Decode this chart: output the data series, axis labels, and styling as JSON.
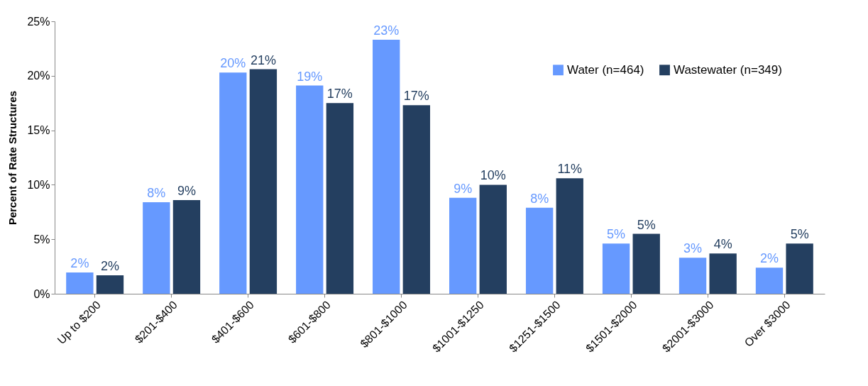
{
  "chart_data": {
    "type": "bar",
    "ylabel": "Percent of Rate Structures",
    "categories": [
      "Up to $200",
      "$201-$400",
      "$401-$600",
      "$601-$800",
      "$801-$1000",
      "$1001-$1250",
      "$1251-$1500",
      "$1501-$2000",
      "$2001-$3000",
      "Over $3000"
    ],
    "series": [
      {
        "name": "Water (n=464)",
        "color": "#6699ff",
        "values": [
          1.95,
          8.4,
          20.3,
          19.1,
          23.3,
          8.8,
          7.9,
          4.6,
          3.3,
          2.4
        ],
        "value_labels": [
          "2%",
          "8%",
          "20%",
          "19%",
          "23%",
          "9%",
          "8%",
          "5%",
          "3%",
          "2%"
        ]
      },
      {
        "name": "Wastewater (n=349)",
        "color": "#243f60",
        "values": [
          1.7,
          8.6,
          20.6,
          17.5,
          17.3,
          10.0,
          10.6,
          5.5,
          3.7,
          4.6
        ],
        "value_labels": [
          "2%",
          "9%",
          "21%",
          "17%",
          "17%",
          "10%",
          "11%",
          "5%",
          "4%",
          "5%"
        ]
      }
    ],
    "ylim": [
      0,
      25
    ],
    "yticks": [
      {
        "value": 0,
        "label": "0%"
      },
      {
        "value": 5,
        "label": "5%"
      },
      {
        "value": 10,
        "label": "10%"
      },
      {
        "value": 15,
        "label": "15%"
      },
      {
        "value": 20,
        "label": "20%"
      },
      {
        "value": 25,
        "label": "25%"
      }
    ],
    "grid": false,
    "legend": "top right"
  }
}
